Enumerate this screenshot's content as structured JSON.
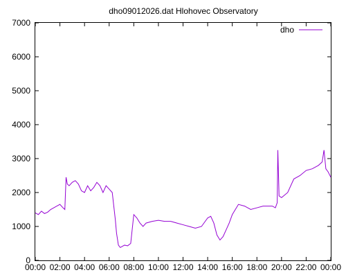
{
  "chart_data": {
    "type": "line",
    "title": "dho09012026.dat Hlohovec Observatory",
    "xlabel": "",
    "ylabel": "",
    "xlim": [
      0,
      24
    ],
    "ylim": [
      0,
      7000
    ],
    "x_tick_labels": [
      "00:00",
      "02:00",
      "04:00",
      "06:00",
      "08:00",
      "10:00",
      "12:00",
      "14:00",
      "16:00",
      "18:00",
      "20:00",
      "22:00",
      "00:00"
    ],
    "y_ticks": [
      0,
      1000,
      2000,
      3000,
      4000,
      5000,
      6000,
      7000
    ],
    "grid": false,
    "legend_position": "top-right",
    "series": [
      {
        "name": "dho",
        "color": "#9400d3",
        "x": [
          0.0,
          0.25,
          0.5,
          0.75,
          1.0,
          1.25,
          1.5,
          1.75,
          2.0,
          2.25,
          2.4,
          2.5,
          2.6,
          2.75,
          3.0,
          3.25,
          3.5,
          3.75,
          4.0,
          4.25,
          4.5,
          4.75,
          5.0,
          5.25,
          5.5,
          5.75,
          6.0,
          6.25,
          6.5,
          6.6,
          6.75,
          6.9,
          7.0,
          7.25,
          7.5,
          7.75,
          8.0,
          8.25,
          8.5,
          8.75,
          9.0,
          9.5,
          10.0,
          10.5,
          11.0,
          11.5,
          12.0,
          12.5,
          13.0,
          13.5,
          14.0,
          14.25,
          14.5,
          14.75,
          15.0,
          15.25,
          15.5,
          15.75,
          16.0,
          16.25,
          16.5,
          17.0,
          17.5,
          18.0,
          18.5,
          19.0,
          19.25,
          19.5,
          19.65,
          19.7,
          19.8,
          20.0,
          20.5,
          21.0,
          21.5,
          22.0,
          22.5,
          23.0,
          23.3,
          23.45,
          23.6,
          23.8,
          24.0
        ],
        "y": [
          1400,
          1350,
          1450,
          1380,
          1420,
          1500,
          1550,
          1600,
          1650,
          1550,
          1500,
          2450,
          2250,
          2200,
          2300,
          2350,
          2250,
          2050,
          2000,
          2200,
          2050,
          2150,
          2300,
          2200,
          2000,
          2200,
          2100,
          2000,
          1200,
          800,
          450,
          380,
          400,
          450,
          430,
          500,
          1350,
          1250,
          1100,
          1000,
          1100,
          1150,
          1180,
          1150,
          1150,
          1100,
          1050,
          1000,
          950,
          1000,
          1250,
          1300,
          1100,
          750,
          600,
          700,
          900,
          1100,
          1350,
          1500,
          1650,
          1600,
          1500,
          1550,
          1600,
          1600,
          1600,
          1550,
          1700,
          3250,
          1900,
          1850,
          2000,
          2400,
          2500,
          2650,
          2700,
          2800,
          2900,
          3250,
          2700,
          2600,
          2450
        ]
      }
    ]
  }
}
